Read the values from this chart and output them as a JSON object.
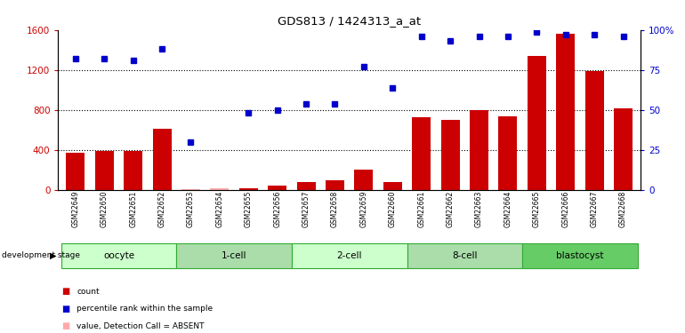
{
  "title": "GDS813 / 1424313_a_at",
  "samples": [
    "GSM22649",
    "GSM22650",
    "GSM22651",
    "GSM22652",
    "GSM22653",
    "GSM22654",
    "GSM22655",
    "GSM22656",
    "GSM22657",
    "GSM22658",
    "GSM22659",
    "GSM22660",
    "GSM22661",
    "GSM22662",
    "GSM22663",
    "GSM22664",
    "GSM22665",
    "GSM22666",
    "GSM22667",
    "GSM22668"
  ],
  "bar_values": [
    370,
    390,
    390,
    610,
    10,
    15,
    20,
    40,
    80,
    100,
    200,
    80,
    730,
    700,
    800,
    740,
    1340,
    1560,
    1190,
    820
  ],
  "bar_absent": [
    false,
    false,
    false,
    false,
    true,
    true,
    false,
    false,
    false,
    false,
    false,
    false,
    false,
    false,
    false,
    false,
    false,
    false,
    false,
    false
  ],
  "dot_percent": [
    82,
    82,
    81,
    88,
    30,
    null,
    48,
    50,
    54,
    54,
    77,
    64,
    96,
    93,
    96,
    96,
    99,
    97,
    97,
    96
  ],
  "dot_absent": [
    false,
    false,
    false,
    false,
    false,
    true,
    false,
    false,
    false,
    false,
    false,
    false,
    false,
    false,
    false,
    false,
    false,
    false,
    false,
    false
  ],
  "groups": [
    {
      "label": "oocyte",
      "start": 0,
      "end": 3
    },
    {
      "label": "1-cell",
      "start": 4,
      "end": 7
    },
    {
      "label": "2-cell",
      "start": 8,
      "end": 11
    },
    {
      "label": "8-cell",
      "start": 12,
      "end": 15
    },
    {
      "label": "blastocyst",
      "start": 16,
      "end": 19
    }
  ],
  "bar_color": "#cc0000",
  "bar_absent_color": "#ffaaaa",
  "dot_color": "#0000cc",
  "dot_absent_color": "#aaaadd",
  "left_ylim": [
    0,
    1600
  ],
  "right_ylim": [
    0,
    100
  ],
  "left_yticks": [
    0,
    400,
    800,
    1200,
    1600
  ],
  "right_yticks": [
    0,
    25,
    50,
    75,
    100
  ],
  "right_yticklabels": [
    "0",
    "25",
    "50",
    "75",
    "100%"
  ],
  "grid_levels": [
    400,
    800,
    1200
  ],
  "grid_color": "#000000",
  "bg_color": "#ffffff",
  "tick_label_color_left": "#cc0000",
  "tick_label_color_right": "#0000cc",
  "group_colors": [
    "#ccffcc",
    "#aaddaa",
    "#ccffcc",
    "#aaddaa",
    "#66cc66"
  ],
  "group_edge_color": "#33aa33",
  "sample_bg_color": "#cccccc",
  "dev_stage_text": "development stage"
}
